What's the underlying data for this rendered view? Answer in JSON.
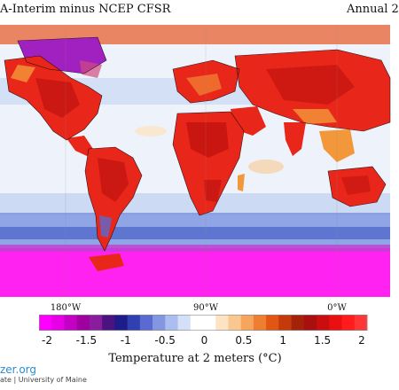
{
  "header": {
    "title_left": "A-Interim minus NCEP CFSR",
    "title_right": "Annual 2"
  },
  "map": {
    "longitude_labels": [
      "180°W",
      "90°W",
      "0°W"
    ],
    "colors": {
      "ocean_background": "#eef3fb",
      "ocean_light_blue": "#b9cdf0",
      "ocean_blue": "#7f97e0",
      "warm_orange": "#f2983a",
      "warm_red": "#e8271a",
      "deep_red": "#c0120f",
      "antarctic_magenta": "#ff22f0",
      "arctic_purple": "#a020c0",
      "coastline": "#000000"
    }
  },
  "colorbar": {
    "label": "Temperature at 2 meters (°C)",
    "tick_labels": [
      "-2",
      "-1.5",
      "-1",
      "-0.5",
      "0",
      "0.5",
      "1",
      "1.5",
      "2"
    ],
    "colors": [
      "#ff00ff",
      "#e600e6",
      "#c400c4",
      "#a000a0",
      "#8a1d9e",
      "#4a1380",
      "#1e1b8a",
      "#3040b0",
      "#5a6ad0",
      "#8296e2",
      "#acbdf0",
      "#d4dff8",
      "#ffffff",
      "#ffffff",
      "#fde3c4",
      "#f9c891",
      "#f5a55e",
      "#ee7e32",
      "#e05612",
      "#c43a0a",
      "#a5220a",
      "#a80f0f",
      "#c80e0e",
      "#e81010",
      "#ff1c1c",
      "#ff3636"
    ]
  },
  "branding": {
    "name": "zer.org",
    "subtitle": "ate | University of Maine"
  }
}
